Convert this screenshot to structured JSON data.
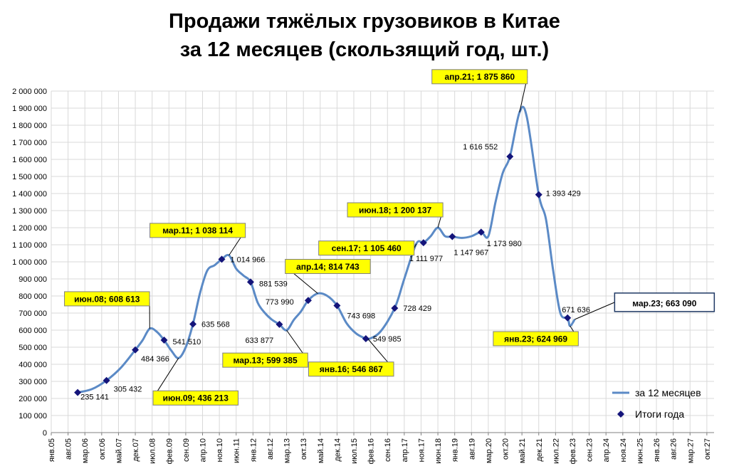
{
  "title_line1": "Продажи тяжёлых грузовиков в Китае",
  "title_line2": "за 12 месяцев (скользящий год, шт.)",
  "chart_data": {
    "type": "line",
    "title": "Продажи тяжёлых грузовиков в Китае за 12 месяцев (скользящий год, шт.)",
    "ylim": [
      0,
      2000000
    ],
    "y_ticks": [
      "0",
      "100 000",
      "200 000",
      "300 000",
      "400 000",
      "500 000",
      "600 000",
      "700 000",
      "800 000",
      "900 000",
      "1 000 000",
      "1 100 000",
      "1 200 000",
      "1 300 000",
      "1 400 000",
      "1 500 000",
      "1 600 000",
      "1 700 000",
      "1 800 000",
      "1 900 000",
      "2 000 000"
    ],
    "x_ticks": [
      "янв.05",
      "авг.05",
      "мар.06",
      "окт.06",
      "май.07",
      "дек.07",
      "июл.08",
      "фев.09",
      "сен.09",
      "апр.10",
      "ноя.10",
      "июн.11",
      "янв.12",
      "авг.12",
      "мар.13",
      "окт.13",
      "май.14",
      "дек.14",
      "июл.15",
      "фев.16",
      "сен.16",
      "апр.17",
      "ноя.17",
      "июн.18",
      "янв.19",
      "авг.19",
      "мар.20",
      "окт.20",
      "май.21",
      "дек.21",
      "июл.22",
      "фев.23",
      "сен.23",
      "апр.24",
      "ноя.24",
      "июн.25",
      "янв.26",
      "авг.26",
      "мар.27",
      "окт.27"
    ],
    "grid": true,
    "legend_position": "bottom-right",
    "series": [
      {
        "name": "за 12 месяцев",
        "color": "#5B8AC6",
        "points": [
          [
            "2005-12",
            235141
          ],
          [
            "2006-06",
            255000
          ],
          [
            "2006-12",
            305432
          ],
          [
            "2007-06",
            380000
          ],
          [
            "2007-12",
            484366
          ],
          [
            "2008-03",
            540000
          ],
          [
            "2008-06",
            608613
          ],
          [
            "2008-09",
            590000
          ],
          [
            "2008-12",
            541510
          ],
          [
            "2009-03",
            480000
          ],
          [
            "2009-06",
            436213
          ],
          [
            "2009-09",
            500000
          ],
          [
            "2009-12",
            635568
          ],
          [
            "2010-03",
            820000
          ],
          [
            "2010-06",
            950000
          ],
          [
            "2010-09",
            980000
          ],
          [
            "2010-12",
            1014966
          ],
          [
            "2011-03",
            1038114
          ],
          [
            "2011-06",
            960000
          ],
          [
            "2011-09",
            920000
          ],
          [
            "2011-12",
            881539
          ],
          [
            "2012-03",
            760000
          ],
          [
            "2012-06",
            700000
          ],
          [
            "2012-09",
            660000
          ],
          [
            "2012-12",
            633877
          ],
          [
            "2013-03",
            599385
          ],
          [
            "2013-06",
            660000
          ],
          [
            "2013-09",
            710000
          ],
          [
            "2013-12",
            773990
          ],
          [
            "2014-04",
            814743
          ],
          [
            "2014-08",
            800000
          ],
          [
            "2014-12",
            743698
          ],
          [
            "2015-04",
            640000
          ],
          [
            "2015-08",
            580000
          ],
          [
            "2015-12",
            549985
          ],
          [
            "2016-01",
            546867
          ],
          [
            "2016-06",
            590000
          ],
          [
            "2016-12",
            728429
          ],
          [
            "2017-04",
            900000
          ],
          [
            "2017-09",
            1105460
          ],
          [
            "2017-12",
            1111977
          ],
          [
            "2018-03",
            1150000
          ],
          [
            "2018-06",
            1200137
          ],
          [
            "2018-09",
            1150000
          ],
          [
            "2018-12",
            1147967
          ],
          [
            "2019-04",
            1140000
          ],
          [
            "2019-08",
            1150000
          ],
          [
            "2019-12",
            1173980
          ],
          [
            "2020-03",
            1150000
          ],
          [
            "2020-06",
            1350000
          ],
          [
            "2020-09",
            1520000
          ],
          [
            "2020-12",
            1616552
          ],
          [
            "2021-04",
            1875860
          ],
          [
            "2021-07",
            1850000
          ],
          [
            "2021-12",
            1393429
          ],
          [
            "2022-03",
            1250000
          ],
          [
            "2022-06",
            950000
          ],
          [
            "2022-09",
            700000
          ],
          [
            "2022-12",
            671636
          ],
          [
            "2023-01",
            624969
          ],
          [
            "2023-03",
            663090
          ]
        ]
      },
      {
        "name": "Итоги года",
        "color": "#14147A",
        "points": [
          [
            "2005-12",
            235141
          ],
          [
            "2006-12",
            305432
          ],
          [
            "2007-12",
            484366
          ],
          [
            "2008-12",
            541510
          ],
          [
            "2009-12",
            635568
          ],
          [
            "2010-12",
            1014966
          ],
          [
            "2011-12",
            881539
          ],
          [
            "2012-12",
            633877
          ],
          [
            "2013-12",
            773990
          ],
          [
            "2014-12",
            743698
          ],
          [
            "2015-12",
            549985
          ],
          [
            "2016-12",
            728429
          ],
          [
            "2017-12",
            1111977
          ],
          [
            "2018-12",
            1147967
          ],
          [
            "2019-12",
            1173980
          ],
          [
            "2020-12",
            1616552
          ],
          [
            "2021-12",
            1393429
          ],
          [
            "2022-12",
            671636
          ]
        ]
      }
    ],
    "data_labels": [
      {
        "text": "235 141",
        "date": "2005-12",
        "value": 235141
      },
      {
        "text": "305 432",
        "date": "2006-12",
        "value": 305432
      },
      {
        "text": "484 366",
        "date": "2007-12",
        "value": 484366
      },
      {
        "text": "541 510",
        "date": "2008-12",
        "value": 541510
      },
      {
        "text": "635 568",
        "date": "2009-12",
        "value": 635568
      },
      {
        "text": "1 014 966",
        "date": "2010-12",
        "value": 1014966
      },
      {
        "text": "881 539",
        "date": "2011-12",
        "value": 881539
      },
      {
        "text": "633 877",
        "date": "2012-12",
        "value": 633877
      },
      {
        "text": "773 990",
        "date": "2013-12",
        "value": 773990
      },
      {
        "text": "743 698",
        "date": "2014-12",
        "value": 743698
      },
      {
        "text": "549 985",
        "date": "2015-12",
        "value": 549985
      },
      {
        "text": "728 429",
        "date": "2016-12",
        "value": 728429
      },
      {
        "text": "1 111 977",
        "date": "2017-12",
        "value": 1111977
      },
      {
        "text": "1 147 967",
        "date": "2018-12",
        "value": 1147967
      },
      {
        "text": "1 173 980",
        "date": "2019-12",
        "value": 1173980
      },
      {
        "text": "1 616 552",
        "date": "2020-12",
        "value": 1616552
      },
      {
        "text": "1 393 429",
        "date": "2021-12",
        "value": 1393429
      },
      {
        "text": "671 636",
        "date": "2022-12",
        "value": 671636
      }
    ],
    "annotations": [
      {
        "text": "июн.08; 608 613",
        "date": "2008-06",
        "value": 608613,
        "style": "yellow"
      },
      {
        "text": "июн.09; 436 213",
        "date": "2009-06",
        "value": 436213,
        "style": "yellow"
      },
      {
        "text": "мар.11; 1 038 114",
        "date": "2011-03",
        "value": 1038114,
        "style": "yellow"
      },
      {
        "text": "мар.13; 599 385",
        "date": "2013-03",
        "value": 599385,
        "style": "yellow"
      },
      {
        "text": "апр.14; 814 743",
        "date": "2014-04",
        "value": 814743,
        "style": "yellow"
      },
      {
        "text": "янв.16; 546 867",
        "date": "2016-01",
        "value": 546867,
        "style": "yellow"
      },
      {
        "text": "сен.17; 1 105 460",
        "date": "2017-09",
        "value": 1105460,
        "style": "yellow"
      },
      {
        "text": "июн.18; 1 200 137",
        "date": "2018-06",
        "value": 1200137,
        "style": "yellow"
      },
      {
        "text": "апр.21; 1 875 860",
        "date": "2021-04",
        "value": 1875860,
        "style": "yellow"
      },
      {
        "text": "янв.23; 624 969",
        "date": "2023-01",
        "value": 624969,
        "style": "yellow"
      },
      {
        "text": "мар.23; 663 090",
        "date": "2023-03",
        "value": 663090,
        "style": "white"
      }
    ]
  }
}
